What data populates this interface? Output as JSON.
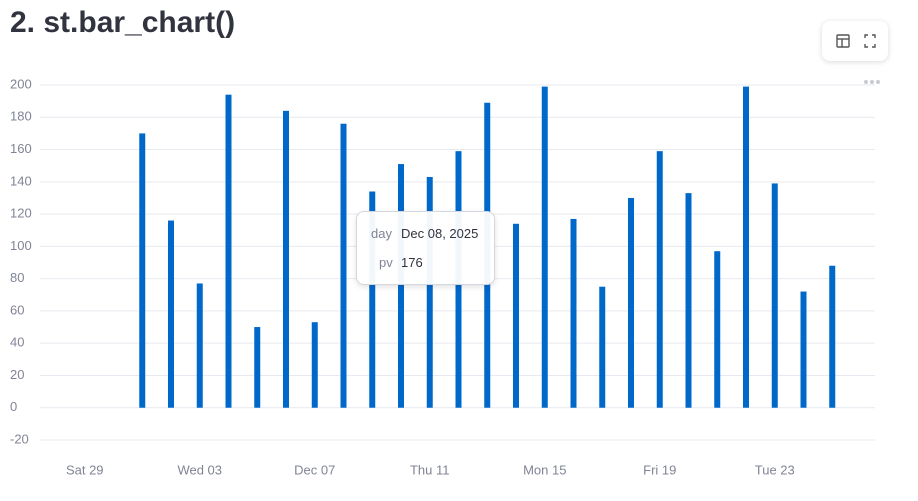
{
  "title": "2. st.bar_chart()",
  "chart_data": {
    "type": "bar",
    "x": [
      "2025-12-01",
      "2025-12-02",
      "2025-12-03",
      "2025-12-04",
      "2025-12-05",
      "2025-12-06",
      "2025-12-07",
      "2025-12-08",
      "2025-12-09",
      "2025-12-10",
      "2025-12-11",
      "2025-12-12",
      "2025-12-13",
      "2025-12-14",
      "2025-12-15",
      "2025-12-16",
      "2025-12-17",
      "2025-12-18",
      "2025-12-19",
      "2025-12-20",
      "2025-12-21",
      "2025-12-22",
      "2025-12-23",
      "2025-12-24",
      "2025-12-25"
    ],
    "series": [
      {
        "name": "pv",
        "color": "#0068c9",
        "values": [
          170,
          116,
          77,
          194,
          50,
          184,
          53,
          176,
          134,
          151,
          143,
          159,
          189,
          114,
          199,
          117,
          75,
          130,
          159,
          133,
          97,
          199,
          139,
          72,
          88
        ]
      }
    ],
    "xlim": [
      "2025-11-28",
      "2025-12-26"
    ],
    "xticks": [
      {
        "value": "2025-11-29",
        "label": "Sat 29"
      },
      {
        "value": "2025-12-03",
        "label": "Wed 03"
      },
      {
        "value": "2025-12-07",
        "label": "Dec 07"
      },
      {
        "value": "2025-12-11",
        "label": "Thu 11"
      },
      {
        "value": "2025-12-15",
        "label": "Mon 15"
      },
      {
        "value": "2025-12-19",
        "label": "Fri 19"
      },
      {
        "value": "2025-12-23",
        "label": "Tue 23"
      }
    ],
    "ylim": [
      -20,
      200
    ],
    "yticks": [
      -20,
      0,
      20,
      40,
      60,
      80,
      100,
      120,
      140,
      160,
      180,
      200
    ],
    "grid": true,
    "tooltip": {
      "day_label": "day",
      "day": "Dec 08, 2025",
      "pv": 176
    }
  }
}
